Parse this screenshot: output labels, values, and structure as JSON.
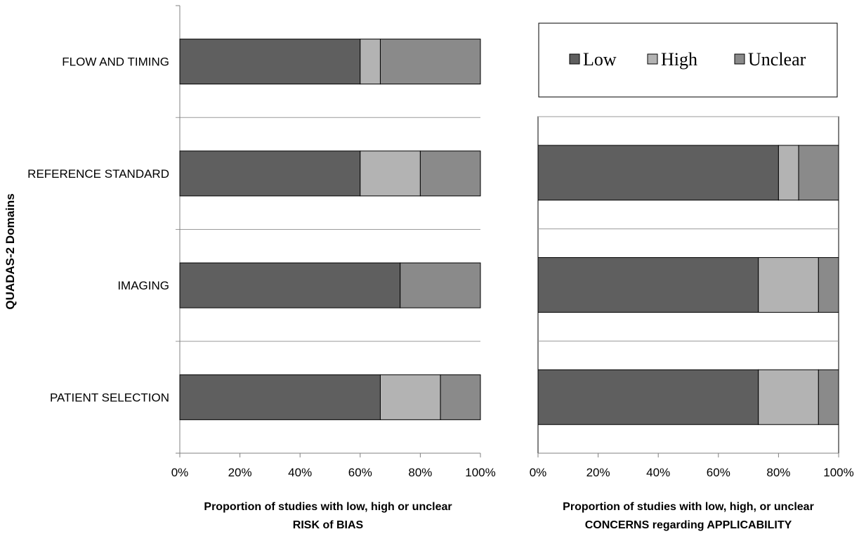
{
  "y_title": "QUADAS-2 Domains",
  "legend": [
    {
      "label": "Low",
      "color": "#5f5f5f"
    },
    {
      "label": "High",
      "color": "#b3b3b3"
    },
    {
      "label": "Unclear",
      "color": "#8a8a8a"
    }
  ],
  "chart_data": [
    {
      "type": "bar",
      "orientation": "horizontal",
      "stacked": true,
      "categories": [
        "FLOW AND TIMING",
        "REFERENCE STANDARD",
        "IMAGING",
        "PATIENT SELECTION"
      ],
      "series": [
        {
          "name": "Low",
          "values": [
            60,
            60,
            73.3,
            66.7
          ]
        },
        {
          "name": "High",
          "values": [
            6.7,
            20,
            0,
            20
          ]
        },
        {
          "name": "Unclear",
          "values": [
            33.3,
            20,
            26.7,
            13.3
          ]
        }
      ],
      "xlim": [
        0,
        100
      ],
      "x_ticks": [
        "0%",
        "20%",
        "40%",
        "60%",
        "80%",
        "100%"
      ],
      "xlabel_lines": [
        "Proportion of studies with low, high or unclear",
        "RISK of BIAS"
      ],
      "ylabel": "QUADAS-2 Domains"
    },
    {
      "type": "bar",
      "orientation": "horizontal",
      "stacked": true,
      "categories": [
        "REFERENCE STANDARD",
        "IMAGING",
        "PATIENT SELECTION"
      ],
      "series": [
        {
          "name": "Low",
          "values": [
            80,
            73.3,
            73.3
          ]
        },
        {
          "name": "High",
          "values": [
            6.7,
            20,
            20
          ]
        },
        {
          "name": "Unclear",
          "values": [
            13.3,
            6.7,
            6.7
          ]
        }
      ],
      "xlim": [
        0,
        100
      ],
      "x_ticks": [
        "0%",
        "20%",
        "40%",
        "60%",
        "80%",
        "100%"
      ],
      "xlabel_lines": [
        "Proportion of studies with low, high, or unclear",
        "CONCERNS regarding APPLICABILITY"
      ],
      "legend_position": "top"
    }
  ]
}
